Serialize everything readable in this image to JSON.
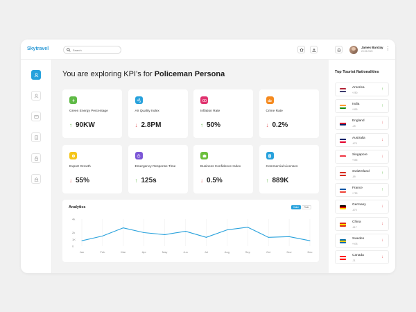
{
  "app": {
    "logo": "Skytravel"
  },
  "search": {
    "placeholder": "Search"
  },
  "user": {
    "name": "James Barclay",
    "date": "20.03.2020"
  },
  "main": {
    "title_prefix": "You are exploring KPI’s for",
    "title_bold": "Policeman Persona"
  },
  "colors": {
    "accent": "#27a1dc",
    "up": "#5fba46",
    "down": "#e2575a"
  },
  "kpis": [
    {
      "label": "Green Energy Percentage",
      "value": "90KW",
      "trend": "up",
      "icon": "bolt-icon",
      "color": "#5fba46"
    },
    {
      "label": "Air Quality Index",
      "value": "2.8PM",
      "trend": "down",
      "icon": "wind-icon",
      "color": "#27a1dc"
    },
    {
      "label": "Inflation Rate",
      "value": "50%",
      "trend": "up",
      "icon": "money-icon",
      "color": "#e0336f"
    },
    {
      "label": "Crime Rate",
      "value": "0.2%",
      "trend": "down",
      "icon": "handcuffs-icon",
      "color": "#f58a1f"
    },
    {
      "label": "Export Growth",
      "value": "55%",
      "trend": "down",
      "icon": "export-icon",
      "color": "#f5c518"
    },
    {
      "label": "Emergency Response Time",
      "value": "125s",
      "trend": "up",
      "icon": "timer-icon",
      "color": "#7b56d6"
    },
    {
      "label": "Business Confidence Index",
      "value": "0.5%",
      "trend": "down",
      "icon": "briefcase-icon",
      "color": "#6bbf3b"
    },
    {
      "label": "Commercial Licenses",
      "value": "889K",
      "trend": "up",
      "icon": "license-icon",
      "color": "#27a1dc"
    }
  ],
  "analytics": {
    "title": "Analytics",
    "toggle_on": "Value",
    "toggle_off": "Rate"
  },
  "chart_data": {
    "type": "line",
    "categories": [
      "Jan",
      "Feb",
      "Mar",
      "Apr",
      "May",
      "Jun",
      "Jul",
      "Aug",
      "Sep",
      "Oct",
      "Nov",
      "Dec"
    ],
    "series": [
      {
        "values": [
          800,
          1500,
          2700,
          2000,
          1700,
          2200,
          1300,
          2400,
          2800,
          1300,
          1400,
          800
        ]
      }
    ],
    "yticks": [
      "0",
      "1K",
      "2k",
      "4k"
    ],
    "ylim": [
      0,
      4000
    ],
    "color": "#27a1dc",
    "grid": true
  },
  "nationalities": {
    "title": "Top Tourist Nationalities",
    "items": [
      {
        "name": "America",
        "value": "+250",
        "trend": "up",
        "flag": [
          "#b22234",
          "#ffffff",
          "#3c3b6e"
        ]
      },
      {
        "name": "India",
        "value": "+899",
        "trend": "up",
        "flag": [
          "#ff9933",
          "#ffffff",
          "#138808"
        ]
      },
      {
        "name": "England",
        "value": "-25",
        "trend": "down",
        "flag": [
          "#ffffff",
          "#cf142b",
          "#012169"
        ]
      },
      {
        "name": "Australia",
        "value": "-678",
        "trend": "down",
        "flag": [
          "#012169",
          "#ffffff",
          "#e4002b"
        ]
      },
      {
        "name": "Singapore",
        "value": "+555",
        "trend": "down",
        "flag": [
          "#ef3340",
          "#ffffff",
          "#ffffff"
        ]
      },
      {
        "name": "Switzerland",
        "value": "-89",
        "trend": "up",
        "flag": [
          "#d52b1e",
          "#ffffff",
          "#d52b1e"
        ]
      },
      {
        "name": "France",
        "value": "+759",
        "trend": "up",
        "flag": [
          "#0055a4",
          "#ffffff",
          "#ef4135"
        ]
      },
      {
        "name": "Germany",
        "value": "-875",
        "trend": "down",
        "flag": [
          "#000000",
          "#dd0000",
          "#ffce00"
        ]
      },
      {
        "name": "China",
        "value": "-817",
        "trend": "down",
        "flag": [
          "#de2910",
          "#ffde00",
          "#de2910"
        ]
      },
      {
        "name": "Sweden",
        "value": "+978",
        "trend": "down",
        "flag": [
          "#006aa7",
          "#fecc00",
          "#006aa7"
        ]
      },
      {
        "name": "Canada",
        "value": "-31",
        "trend": "down",
        "flag": [
          "#ff0000",
          "#ffffff",
          "#ff0000"
        ]
      }
    ]
  }
}
